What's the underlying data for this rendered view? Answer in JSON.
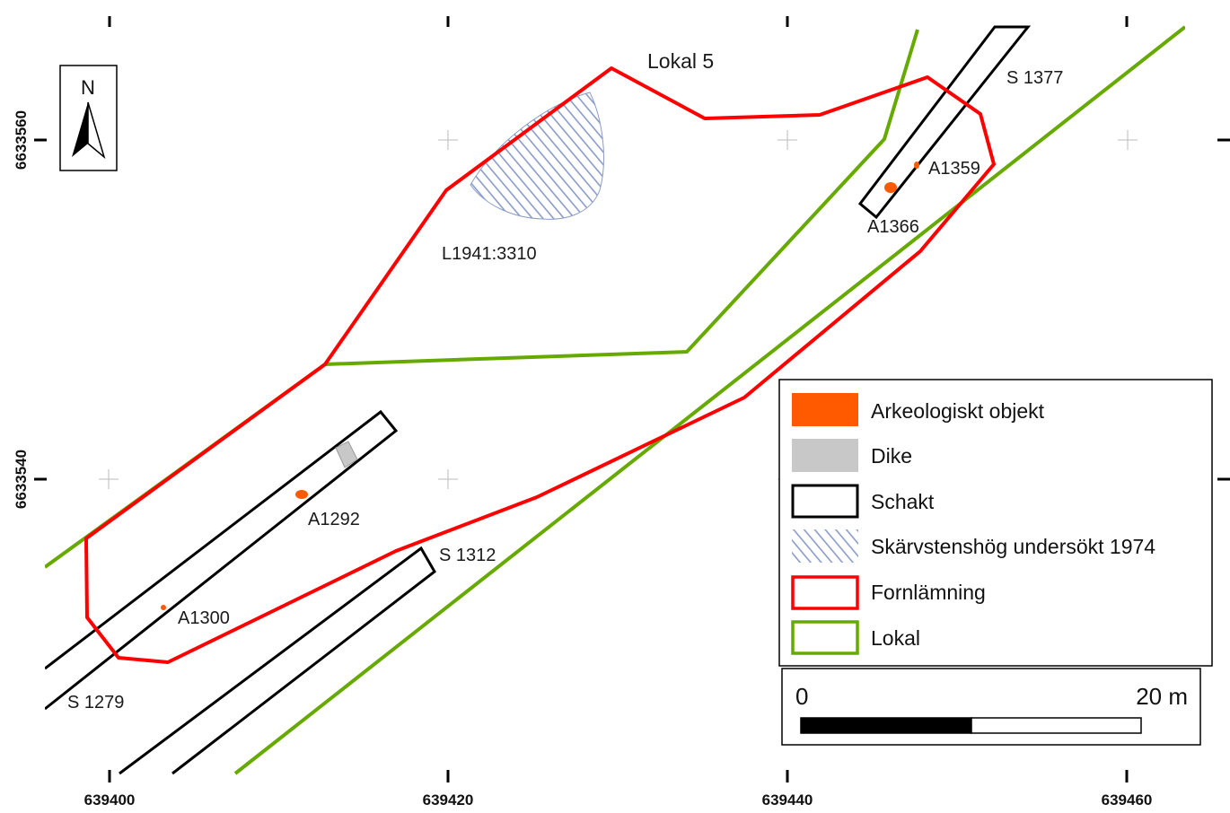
{
  "map": {
    "title_label": "Lokal 5",
    "x_ticks": [
      "639400",
      "639420",
      "639440",
      "639460"
    ],
    "y_ticks": [
      "6633560",
      "6633540"
    ]
  },
  "features": {
    "schakt_labels": [
      "S 1377",
      "S 1279",
      "S 1312"
    ],
    "object_labels": [
      "A1359",
      "A1366",
      "A1292",
      "A1300"
    ],
    "heap_label": "L1941:3310"
  },
  "north_arrow": {
    "letter": "N"
  },
  "legend": {
    "items": [
      {
        "label": "Arkeologiskt objekt",
        "symbol": "fill",
        "color": "#ff5a00"
      },
      {
        "label": "Dike",
        "symbol": "fill",
        "color": "#c8c8c8"
      },
      {
        "label": "Schakt",
        "symbol": "outline",
        "color": "#000000"
      },
      {
        "label": "Skärvstenshög undersökt 1974",
        "symbol": "hatch",
        "color": "#8a9cc8"
      },
      {
        "label": "Fornlämning",
        "symbol": "outline",
        "color": "#ff0000"
      },
      {
        "label": "Lokal",
        "symbol": "outline",
        "color": "#66aa00"
      }
    ]
  },
  "scale_bar": {
    "start_label": "0",
    "end_label": "20 m"
  },
  "colors": {
    "fornlamning": "#ff0000",
    "lokal": "#66aa00",
    "schakt": "#000000",
    "objekt": "#ff5a00",
    "dike": "#c8c8c8",
    "hatch": "#8a9cc8"
  }
}
